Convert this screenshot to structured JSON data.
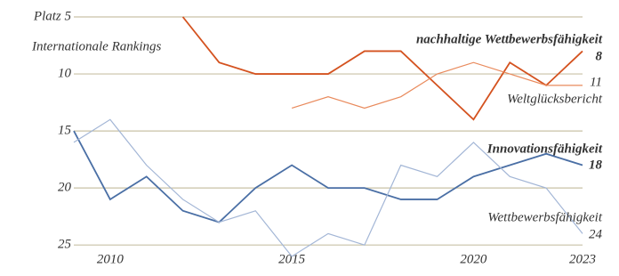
{
  "chart_data": {
    "type": "line",
    "subtitle": "Internationale Rankings",
    "x": [
      2009,
      2010,
      2011,
      2012,
      2013,
      2014,
      2015,
      2016,
      2017,
      2018,
      2019,
      2020,
      2021,
      2022,
      2023
    ],
    "xlim": [
      2009,
      2023
    ],
    "xticks": [
      2010,
      2015,
      2020,
      2023
    ],
    "ylim": [
      5,
      26
    ],
    "inverted_y": true,
    "yticks": [
      {
        "value": 5,
        "label": "Platz 5"
      },
      10,
      15,
      20,
      25
    ],
    "grid": true,
    "series": [
      {
        "name": "nachhaltige Wettbewerbsfähigkeit",
        "color": "#d4521f",
        "bold": true,
        "values": [
          null,
          null,
          null,
          5,
          9,
          10,
          10,
          10,
          8,
          8,
          11,
          14,
          9,
          11,
          8
        ]
      },
      {
        "name": "Weltglücksbericht",
        "color": "#e98a5c",
        "bold": false,
        "values": [
          null,
          null,
          null,
          null,
          null,
          null,
          13,
          12,
          13,
          12,
          10,
          9,
          10,
          11,
          11
        ]
      },
      {
        "name": "Innovationsfähigkeit",
        "color": "#4a6fa5",
        "bold": true,
        "values": [
          15,
          21,
          19,
          22,
          23,
          20,
          18,
          20,
          20,
          21,
          21,
          19,
          18,
          17,
          18
        ]
      },
      {
        "name": "Wettbewerbsfähigkeit",
        "color": "#a3b6d6",
        "bold": false,
        "values": [
          16,
          14,
          18,
          21,
          23,
          22,
          26,
          24,
          25,
          18,
          19,
          16,
          19,
          20,
          24
        ]
      }
    ]
  }
}
